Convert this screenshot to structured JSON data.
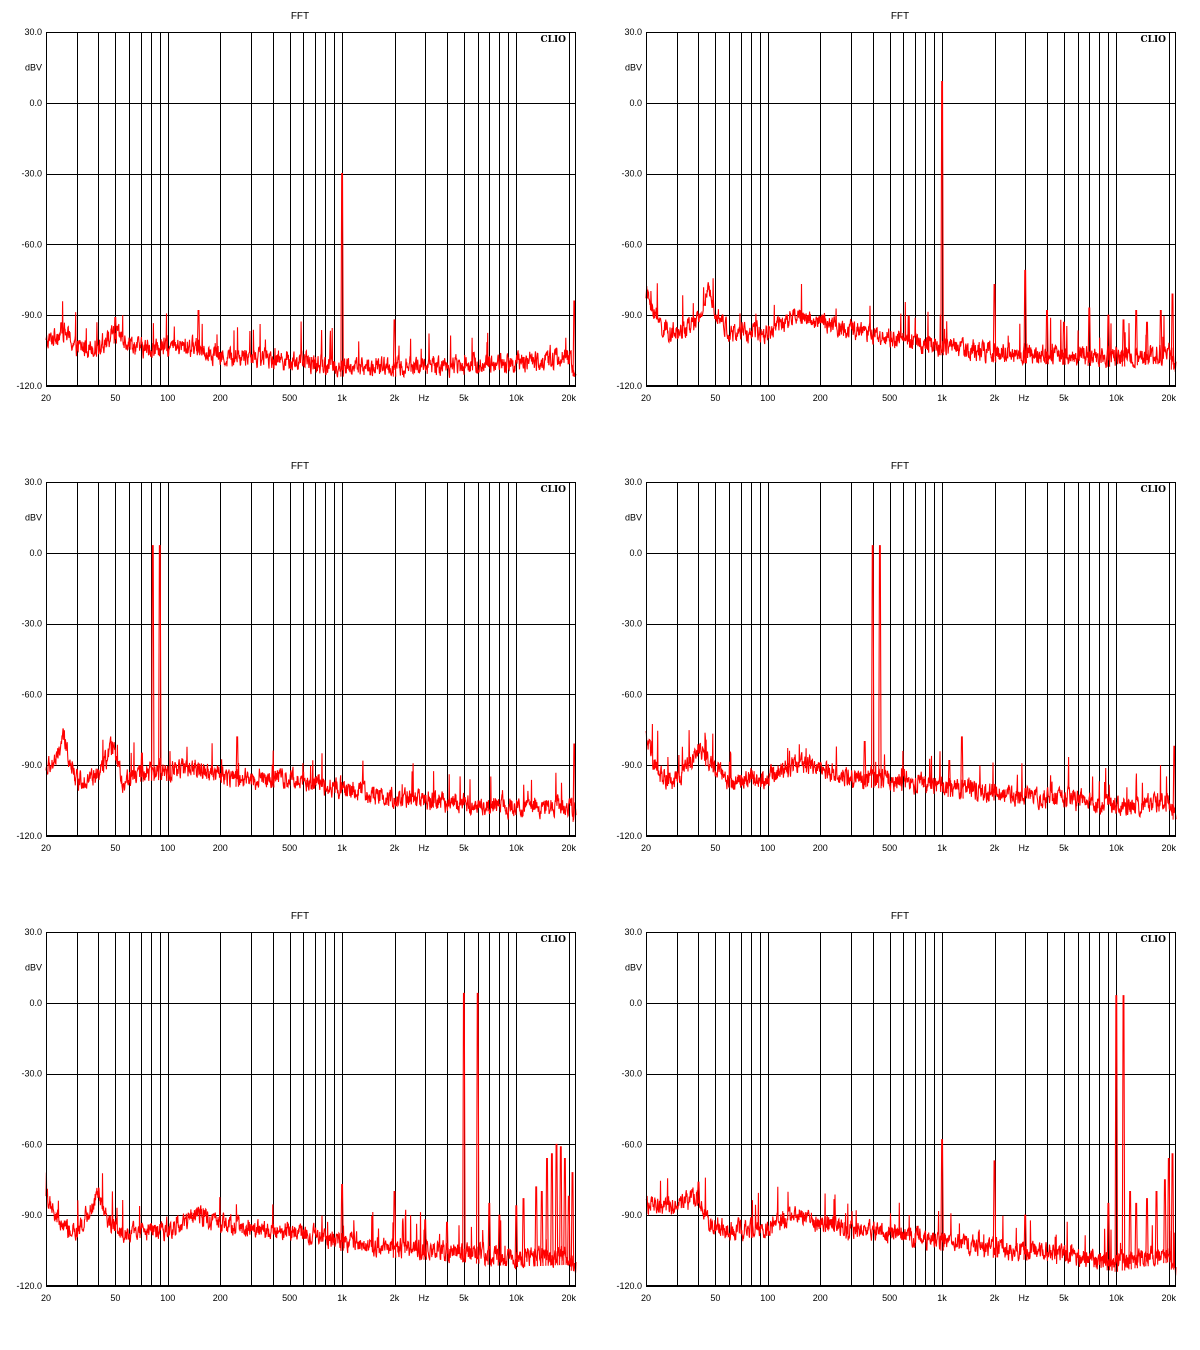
{
  "colors": {
    "trace": "#ff0000",
    "grid": "#000000",
    "background": "#ffffff"
  },
  "panel_labels": {
    "title": "FFT",
    "unit": "dBV",
    "brand": "CLIO",
    "y_ticks": [
      "30.0",
      "0.0",
      "-30.0",
      "-60.0",
      "-90.0",
      "-120.0"
    ],
    "x_ticks": [
      "20",
      "50",
      "100",
      "200",
      "500",
      "1k",
      "2k",
      "Hz",
      "5k",
      "10k",
      "20k"
    ]
  },
  "chart_data": [
    {
      "type": "line",
      "title": "FFT",
      "ylabel": "dBV",
      "xlabel": "Hz",
      "x_scale": "log",
      "xlim": [
        20,
        22000
      ],
      "ylim": [
        -120,
        30
      ],
      "grid": true,
      "brand": "CLIO",
      "x_tick_values": [
        20,
        50,
        100,
        200,
        500,
        1000,
        2000,
        5000,
        10000,
        20000
      ],
      "y_tick_values": [
        30,
        0,
        -30,
        -60,
        -90,
        -120
      ],
      "noise_floor": {
        "x": [
          20,
          25,
          30,
          40,
          50,
          70,
          100,
          150,
          200,
          300,
          500,
          1000,
          2000,
          5000,
          10000,
          20000,
          22000
        ],
        "y": [
          -102,
          -96,
          -104,
          -103,
          -98,
          -104,
          -104,
          -103,
          -108,
          -107,
          -109,
          -112,
          -112,
          -111,
          -110,
          -108,
          -113
        ]
      },
      "peaks": [
        {
          "x": 1000,
          "y": -30
        },
        {
          "x": 150,
          "y": -88
        },
        {
          "x": 50,
          "y": -91
        },
        {
          "x": 2000,
          "y": -92
        },
        {
          "x": 21500,
          "y": -84
        }
      ]
    },
    {
      "type": "line",
      "title": "FFT",
      "ylabel": "dBV",
      "xlabel": "Hz",
      "x_scale": "log",
      "xlim": [
        20,
        22000
      ],
      "ylim": [
        -120,
        30
      ],
      "grid": true,
      "brand": "CLIO",
      "x_tick_values": [
        20,
        50,
        100,
        200,
        500,
        1000,
        2000,
        5000,
        10000,
        20000
      ],
      "y_tick_values": [
        30,
        0,
        -30,
        -60,
        -90,
        -120
      ],
      "noise_floor": {
        "x": [
          20,
          22,
          25,
          30,
          40,
          45,
          60,
          100,
          150,
          200,
          300,
          500,
          1000,
          2000,
          5000,
          10000,
          20000,
          22000
        ],
        "y": [
          -80,
          -88,
          -96,
          -98,
          -93,
          -80,
          -98,
          -97,
          -90,
          -93,
          -96,
          -100,
          -103,
          -106,
          -107,
          -108,
          -106,
          -112
        ]
      },
      "peaks": [
        {
          "x": 1000,
          "y": 9
        },
        {
          "x": 2000,
          "y": -77
        },
        {
          "x": 3000,
          "y": -71
        },
        {
          "x": 4000,
          "y": -88
        },
        {
          "x": 5000,
          "y": -93
        },
        {
          "x": 7000,
          "y": -87
        },
        {
          "x": 9000,
          "y": -90
        },
        {
          "x": 11000,
          "y": -92
        },
        {
          "x": 13000,
          "y": -88
        },
        {
          "x": 15000,
          "y": -93
        },
        {
          "x": 18000,
          "y": -88
        },
        {
          "x": 21000,
          "y": -81
        }
      ]
    },
    {
      "type": "line",
      "title": "FFT",
      "ylabel": "dBV",
      "xlabel": "Hz",
      "x_scale": "log",
      "xlim": [
        20,
        22000
      ],
      "ylim": [
        -120,
        30
      ],
      "grid": true,
      "brand": "CLIO",
      "x_tick_values": [
        20,
        50,
        100,
        200,
        500,
        1000,
        2000,
        5000,
        10000,
        20000
      ],
      "y_tick_values": [
        30,
        0,
        -30,
        -60,
        -90,
        -120
      ],
      "noise_floor": {
        "x": [
          20,
          23,
          25,
          30,
          40,
          48,
          55,
          70,
          100,
          150,
          200,
          300,
          500,
          1000,
          2000,
          5000,
          10000,
          20000,
          22000
        ],
        "y": [
          -92,
          -88,
          -78,
          -96,
          -95,
          -82,
          -97,
          -93,
          -92,
          -91,
          -94,
          -96,
          -95,
          -100,
          -104,
          -106,
          -108,
          -107,
          -111
        ]
      },
      "peaks": [
        {
          "x": 82,
          "y": 3
        },
        {
          "x": 90,
          "y": 3
        },
        {
          "x": 71,
          "y": -85
        },
        {
          "x": 250,
          "y": -78
        },
        {
          "x": 400,
          "y": -90
        },
        {
          "x": 21500,
          "y": -81
        }
      ]
    },
    {
      "type": "line",
      "title": "FFT",
      "ylabel": "dBV",
      "xlabel": "Hz",
      "x_scale": "log",
      "xlim": [
        20,
        22000
      ],
      "ylim": [
        -120,
        30
      ],
      "grid": true,
      "brand": "CLIO",
      "x_tick_values": [
        20,
        50,
        100,
        200,
        500,
        1000,
        2000,
        5000,
        10000,
        20000
      ],
      "y_tick_values": [
        30,
        0,
        -30,
        -60,
        -90,
        -120
      ],
      "noise_floor": {
        "x": [
          20,
          22,
          25,
          30,
          40,
          45,
          60,
          100,
          150,
          200,
          300,
          500,
          1000,
          2000,
          5000,
          10000,
          20000,
          22000
        ],
        "y": [
          -78,
          -90,
          -95,
          -97,
          -82,
          -88,
          -97,
          -95,
          -89,
          -92,
          -95,
          -96,
          -99,
          -102,
          -104,
          -107,
          -106,
          -110
        ]
      },
      "peaks": [
        {
          "x": 400,
          "y": 3
        },
        {
          "x": 440,
          "y": 3
        },
        {
          "x": 360,
          "y": -80
        },
        {
          "x": 1300,
          "y": -78
        },
        {
          "x": 1100,
          "y": -88
        },
        {
          "x": 21500,
          "y": -82
        }
      ]
    },
    {
      "type": "line",
      "title": "FFT",
      "ylabel": "dBV",
      "xlabel": "Hz",
      "x_scale": "log",
      "xlim": [
        20,
        22000
      ],
      "ylim": [
        -120,
        30
      ],
      "grid": true,
      "brand": "CLIO",
      "x_tick_values": [
        20,
        50,
        100,
        200,
        500,
        1000,
        2000,
        5000,
        10000,
        20000
      ],
      "y_tick_values": [
        30,
        0,
        -30,
        -60,
        -90,
        -120
      ],
      "noise_floor": {
        "x": [
          20,
          22,
          25,
          30,
          40,
          45,
          60,
          100,
          150,
          200,
          300,
          500,
          1000,
          2000,
          5000,
          10000,
          20000,
          22000
        ],
        "y": [
          -80,
          -90,
          -95,
          -98,
          -80,
          -92,
          -98,
          -96,
          -90,
          -93,
          -96,
          -97,
          -101,
          -104,
          -106,
          -108,
          -107,
          -112
        ]
      },
      "peaks": [
        {
          "x": 5000,
          "y": 4
        },
        {
          "x": 6000,
          "y": 4
        },
        {
          "x": 4000,
          "y": -93
        },
        {
          "x": 7000,
          "y": -85
        },
        {
          "x": 1000,
          "y": -77
        },
        {
          "x": 2000,
          "y": -80
        },
        {
          "x": 3000,
          "y": -92
        },
        {
          "x": 8000,
          "y": -90
        },
        {
          "x": 10000,
          "y": -86
        },
        {
          "x": 11000,
          "y": -83
        },
        {
          "x": 13000,
          "y": -78
        },
        {
          "x": 14000,
          "y": -80
        },
        {
          "x": 15000,
          "y": -66
        },
        {
          "x": 16000,
          "y": -64
        },
        {
          "x": 17000,
          "y": -60
        },
        {
          "x": 18000,
          "y": -61
        },
        {
          "x": 19000,
          "y": -66
        },
        {
          "x": 20000,
          "y": -82
        },
        {
          "x": 21000,
          "y": -72
        }
      ]
    },
    {
      "type": "line",
      "title": "FFT",
      "ylabel": "dBV",
      "xlabel": "Hz",
      "x_scale": "log",
      "xlim": [
        20,
        22000
      ],
      "ylim": [
        -120,
        30
      ],
      "grid": true,
      "brand": "CLIO",
      "x_tick_values": [
        20,
        50,
        100,
        200,
        500,
        1000,
        2000,
        5000,
        10000,
        20000
      ],
      "y_tick_values": [
        30,
        0,
        -30,
        -60,
        -90,
        -120
      ],
      "noise_floor": {
        "x": [
          20,
          22,
          25,
          30,
          40,
          45,
          60,
          100,
          150,
          200,
          300,
          500,
          1000,
          2000,
          5000,
          10000,
          20000,
          22000
        ],
        "y": [
          -84,
          -87,
          -86,
          -86,
          -82,
          -93,
          -97,
          -95,
          -90,
          -93,
          -96,
          -97,
          -101,
          -104,
          -106,
          -110,
          -106,
          -112
        ]
      },
      "peaks": [
        {
          "x": 10000,
          "y": 3
        },
        {
          "x": 11000,
          "y": 3
        },
        {
          "x": 1000,
          "y": -58
        },
        {
          "x": 2000,
          "y": -67
        },
        {
          "x": 3000,
          "y": -90
        },
        {
          "x": 9000,
          "y": -85
        },
        {
          "x": 12000,
          "y": -80
        },
        {
          "x": 13000,
          "y": -85
        },
        {
          "x": 15000,
          "y": -83
        },
        {
          "x": 17000,
          "y": -80
        },
        {
          "x": 19000,
          "y": -75
        },
        {
          "x": 20000,
          "y": -66
        },
        {
          "x": 21000,
          "y": -64
        },
        {
          "x": 40,
          "y": -76
        }
      ]
    }
  ]
}
